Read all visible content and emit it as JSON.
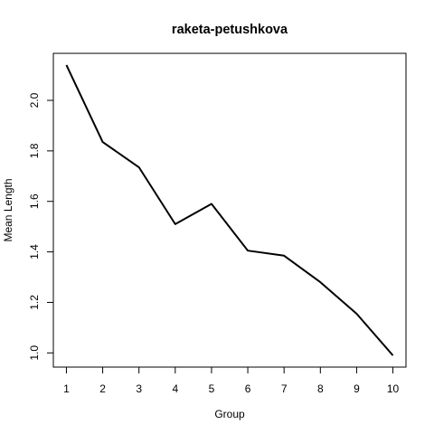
{
  "chart_data": {
    "type": "line",
    "title": "raketa-petushkova",
    "xlabel": "Group",
    "ylabel": "Mean Length",
    "x": [
      1,
      2,
      3,
      4,
      5,
      6,
      7,
      8,
      9,
      10
    ],
    "series": [
      {
        "values": [
          2.14,
          1.835,
          1.735,
          1.51,
          1.59,
          1.405,
          1.385,
          1.28,
          1.155,
          0.99
        ]
      }
    ],
    "x_ticks": [
      "1",
      "2",
      "3",
      "4",
      "5",
      "6",
      "7",
      "8",
      "9",
      "10"
    ],
    "y_ticks": [
      "1.0",
      "1.2",
      "1.4",
      "1.6",
      "1.8",
      "2.0"
    ],
    "xlim": [
      0.64,
      10.36
    ],
    "ylim": [
      0.9438,
      2.1862
    ],
    "grid": false,
    "line_color": "#000000"
  }
}
